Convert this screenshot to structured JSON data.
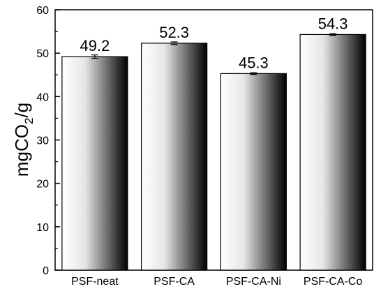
{
  "chart_data": {
    "type": "bar",
    "categories": [
      "PSF-neat",
      "PSF-CA",
      "PSF-CA-Ni",
      "PSF-CA-Co"
    ],
    "values": [
      49.2,
      52.3,
      45.3,
      54.3
    ],
    "error": [
      0.4,
      0.3,
      0.2,
      0.2
    ],
    "value_labels": [
      "49.2",
      "52.3",
      "45.3",
      "54.3"
    ],
    "ylabel": "mgCO2/g",
    "ylim": [
      0,
      60
    ],
    "yticks": [
      0,
      10,
      20,
      30,
      40,
      50,
      60
    ],
    "grid": false,
    "legend": "none",
    "bar_gradient": [
      "#ffffff",
      "#000000"
    ]
  }
}
